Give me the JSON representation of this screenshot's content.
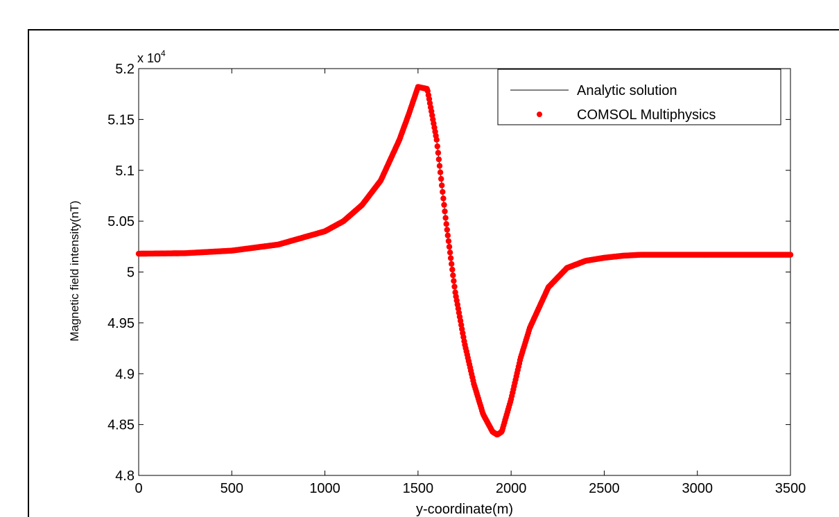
{
  "chart_data": {
    "type": "scatter",
    "title": "",
    "xlabel": "y-coordinate(m)",
    "ylabel": "Magnetic field intensity(nT)",
    "y_exponent_label": "x 10",
    "y_exponent_power": "4",
    "xlim": [
      0,
      3500
    ],
    "ylim": [
      4.8,
      5.2
    ],
    "x_ticks": [
      0,
      500,
      1000,
      1500,
      2000,
      2500,
      3000,
      3500
    ],
    "x_tick_labels": [
      "0",
      "500",
      "1000",
      "1500",
      "2000",
      "2500",
      "3000",
      "3500"
    ],
    "y_ticks": [
      4.8,
      4.85,
      4.9,
      4.95,
      5.0,
      5.05,
      5.1,
      5.15,
      5.2
    ],
    "y_tick_labels": [
      "4.8",
      "4.85",
      "4.9",
      "4.95",
      "5",
      "5.05",
      "5.1",
      "5.15",
      "5.2"
    ],
    "grid": false,
    "legend_position": "top-right",
    "colors": {
      "analytic": "#000000",
      "comsol": "#ff0000"
    },
    "series": [
      {
        "name": "Analytic solution",
        "style": "line",
        "x": [
          0,
          250,
          500,
          750,
          1000,
          1100,
          1200,
          1300,
          1400,
          1450,
          1500,
          1550,
          1600,
          1650,
          1700,
          1750,
          1800,
          1850,
          1900,
          1925,
          1950,
          2000,
          2050,
          2100,
          2200,
          2300,
          2400,
          2500,
          2600,
          2700,
          3000,
          3500
        ],
        "y": [
          5.018,
          5.0185,
          5.021,
          5.027,
          5.04,
          5.05,
          5.066,
          5.09,
          5.13,
          5.155,
          5.182,
          5.18,
          5.13,
          5.05,
          4.98,
          4.93,
          4.89,
          4.86,
          4.843,
          4.84,
          4.843,
          4.875,
          4.915,
          4.945,
          4.985,
          5.004,
          5.011,
          5.014,
          5.016,
          5.017,
          5.017,
          5.017
        ]
      },
      {
        "name": "COMSOL Multiphysics",
        "style": "markers",
        "x": [
          0,
          250,
          500,
          750,
          1000,
          1100,
          1200,
          1300,
          1400,
          1450,
          1500,
          1550,
          1600,
          1650,
          1700,
          1750,
          1800,
          1850,
          1900,
          1925,
          1950,
          2000,
          2050,
          2100,
          2200,
          2300,
          2400,
          2500,
          2600,
          2700,
          3000,
          3500
        ],
        "y": [
          5.018,
          5.0185,
          5.021,
          5.027,
          5.04,
          5.05,
          5.066,
          5.09,
          5.13,
          5.155,
          5.182,
          5.18,
          5.13,
          5.05,
          4.98,
          4.93,
          4.89,
          4.86,
          4.843,
          4.84,
          4.843,
          4.875,
          4.915,
          4.945,
          4.985,
          5.004,
          5.011,
          5.014,
          5.016,
          5.017,
          5.017,
          5.017
        ]
      }
    ]
  }
}
